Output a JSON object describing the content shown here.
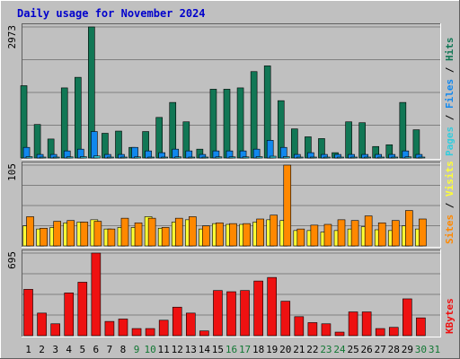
{
  "title": "Daily usage for November 2024",
  "colors": {
    "background": "#c0c0c0",
    "title": "#0000cc",
    "pages": "#33ccdd",
    "files": "#1188ee",
    "hits": "#117755",
    "visits": "#ffff33",
    "sites": "#ff8800",
    "kbytes": "#ee1111",
    "weekend_label": "#117733",
    "weekday_label": "#000000",
    "gridline": "#808080"
  },
  "chart_data": [
    {
      "type": "bar",
      "panel": "hits_files_pages",
      "max_label": "2973",
      "legend": [
        "Pages",
        "Files",
        "Hits"
      ],
      "categories": [
        "1",
        "2",
        "3",
        "4",
        "5",
        "6",
        "7",
        "8",
        "9",
        "10",
        "11",
        "12",
        "13",
        "14",
        "15",
        "16",
        "17",
        "18",
        "19",
        "20",
        "21",
        "22",
        "23",
        "24",
        "25",
        "26",
        "27",
        "28",
        "29",
        "30",
        "31"
      ],
      "series": [
        {
          "name": "Hits",
          "values": [
            1640,
            760,
            430,
            1590,
            1830,
            2973,
            560,
            610,
            240,
            600,
            920,
            1260,
            820,
            200,
            1560,
            1560,
            1590,
            1960,
            2090,
            1300,
            660,
            480,
            440,
            120,
            820,
            800,
            260,
            300,
            1260,
            640,
            0
          ]
        },
        {
          "name": "Files",
          "values": [
            240,
            80,
            80,
            160,
            200,
            600,
            80,
            80,
            240,
            160,
            120,
            200,
            160,
            80,
            160,
            160,
            160,
            200,
            400,
            240,
            80,
            120,
            80,
            80,
            80,
            80,
            80,
            80,
            160,
            80,
            0
          ]
        },
        {
          "name": "Pages",
          "values": [
            30,
            20,
            20,
            25,
            30,
            45,
            20,
            20,
            25,
            20,
            20,
            25,
            20,
            20,
            25,
            25,
            25,
            30,
            40,
            30,
            20,
            20,
            20,
            15,
            20,
            20,
            15,
            15,
            25,
            20,
            0
          ]
        }
      ],
      "ylim": [
        0,
        2973
      ]
    },
    {
      "type": "bar",
      "panel": "sites_visits",
      "max_label": "105",
      "legend": [
        "Sites",
        "Visits"
      ],
      "series": [
        {
          "name": "Visits",
          "values": [
            26,
            22,
            24,
            30,
            31,
            34,
            22,
            24,
            24,
            38,
            23,
            31,
            34,
            22,
            29,
            28,
            28,
            31,
            34,
            33,
            20,
            20,
            18,
            20,
            22,
            25,
            21,
            20,
            26,
            22,
            0
          ]
        },
        {
          "name": "Sites",
          "values": [
            38,
            23,
            32,
            33,
            31,
            32,
            22,
            36,
            30,
            36,
            24,
            36,
            38,
            26,
            30,
            29,
            29,
            35,
            40,
            105,
            22,
            27,
            28,
            34,
            33,
            39,
            30,
            33,
            46,
            35,
            0
          ]
        }
      ],
      "ylim": [
        0,
        105
      ]
    },
    {
      "type": "bar",
      "panel": "kbytes",
      "max_label": "695",
      "legend": [
        "KBytes"
      ],
      "series": [
        {
          "name": "KBytes",
          "values": [
            390,
            190,
            100,
            360,
            450,
            695,
            120,
            140,
            60,
            60,
            130,
            240,
            190,
            40,
            380,
            370,
            380,
            460,
            490,
            290,
            160,
            110,
            100,
            30,
            200,
            200,
            60,
            70,
            310,
            150,
            0
          ]
        }
      ],
      "ylim": [
        0,
        695
      ]
    }
  ],
  "weekends": [
    "9",
    "10",
    "16",
    "17",
    "23",
    "24",
    "30",
    "31"
  ]
}
